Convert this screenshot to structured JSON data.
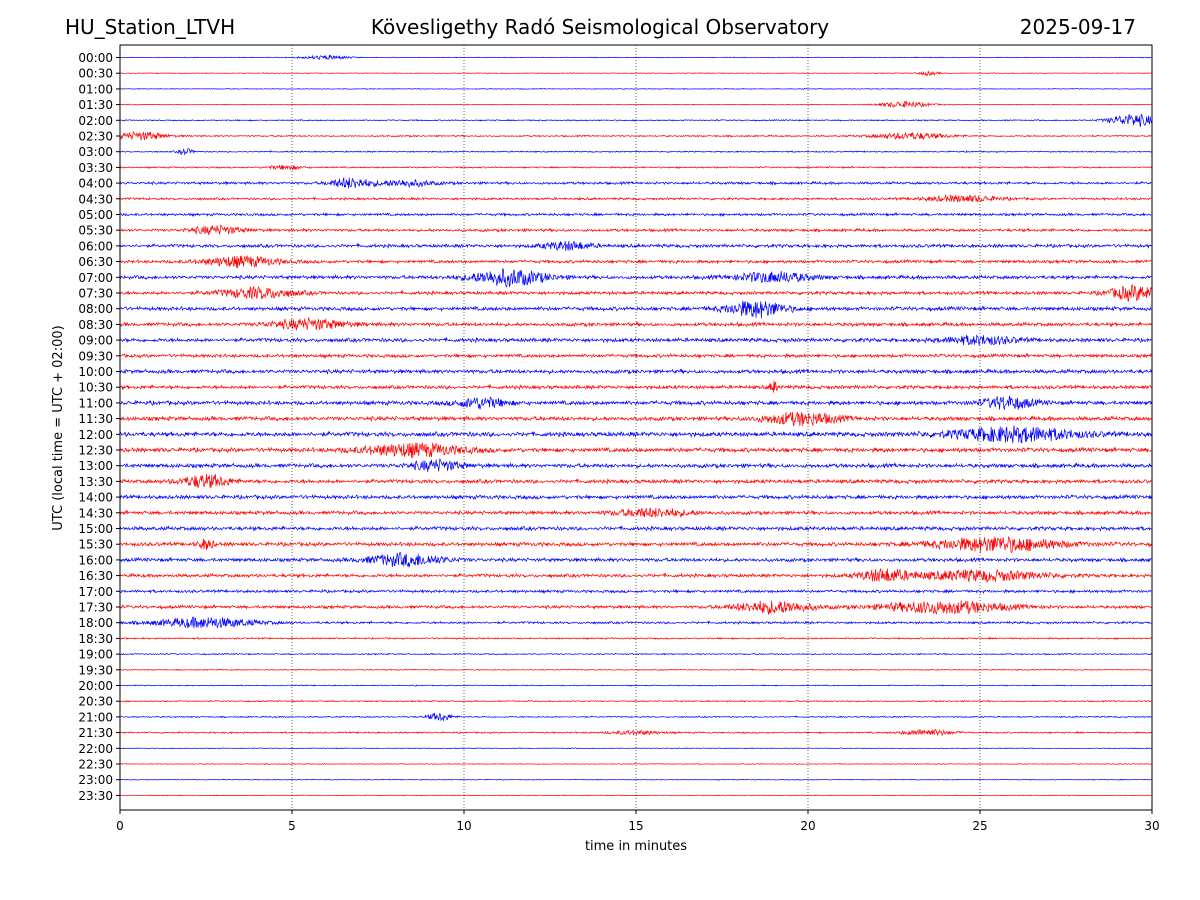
{
  "header": {
    "station": "HU_Station_LTVH",
    "observatory": "Kövesligethy Radó Seismological Observatory",
    "date": "2025-09-17"
  },
  "chart_data": {
    "type": "line",
    "xlabel": "time in minutes",
    "ylabel": "UTC (local time = UTC + 02:00)",
    "xlim": [
      0,
      30
    ],
    "x_ticks": [
      "0",
      "5",
      "10",
      "15",
      "20",
      "25",
      "30"
    ],
    "vertical_gridlines": [
      5,
      10,
      15,
      20,
      25
    ],
    "row_labels": [
      "00:00",
      "00:30",
      "01:00",
      "01:30",
      "02:00",
      "02:30",
      "03:00",
      "03:30",
      "04:00",
      "04:30",
      "05:00",
      "05:30",
      "06:00",
      "06:30",
      "07:00",
      "07:30",
      "08:00",
      "08:30",
      "09:00",
      "09:30",
      "10:00",
      "10:30",
      "11:00",
      "11:30",
      "12:00",
      "12:30",
      "13:00",
      "13:30",
      "14:00",
      "14:30",
      "15:00",
      "15:30",
      "16:00",
      "16:30",
      "17:00",
      "17:30",
      "18:00",
      "18:30",
      "19:00",
      "19:30",
      "20:00",
      "20:30",
      "21:00",
      "21:30",
      "22:00",
      "22:30",
      "23:00",
      "23:30"
    ],
    "row_colors": [
      "#0000ff",
      "#ff0000"
    ],
    "noise_level": [
      0.3,
      0.3,
      0.3,
      0.3,
      0.5,
      0.6,
      0.5,
      0.6,
      1.0,
      0.9,
      1.0,
      1.1,
      1.3,
      1.2,
      1.4,
      1.3,
      1.5,
      1.4,
      1.5,
      1.3,
      1.5,
      1.4,
      1.6,
      1.6,
      1.8,
      1.7,
      1.6,
      1.5,
      1.5,
      1.4,
      1.5,
      1.5,
      1.4,
      1.3,
      1.1,
      1.2,
      0.9,
      0.6,
      0.5,
      0.4,
      0.4,
      0.5,
      0.5,
      0.6,
      0.3,
      0.3,
      0.3,
      0.3
    ],
    "events": [
      {
        "row": 0,
        "x": 6.0,
        "amp": 2,
        "dur": 0.9
      },
      {
        "row": 1,
        "x": 23.5,
        "amp": 2,
        "dur": 0.4
      },
      {
        "row": 3,
        "x": 22.8,
        "amp": 3,
        "dur": 1.0
      },
      {
        "row": 4,
        "x": 29.5,
        "amp": 6,
        "dur": 1.0
      },
      {
        "row": 5,
        "x": 0.6,
        "amp": 4,
        "dur": 1.0
      },
      {
        "row": 5,
        "x": 23.0,
        "amp": 3,
        "dur": 1.5
      },
      {
        "row": 6,
        "x": 1.9,
        "amp": 3,
        "dur": 0.3
      },
      {
        "row": 7,
        "x": 4.8,
        "amp": 2,
        "dur": 0.7
      },
      {
        "row": 8,
        "x": 6.7,
        "amp": 5,
        "dur": 0.8
      },
      {
        "row": 8,
        "x": 8.3,
        "amp": 3,
        "dur": 1.2
      },
      {
        "row": 9,
        "x": 24.5,
        "amp": 3,
        "dur": 1.5
      },
      {
        "row": 11,
        "x": 2.8,
        "amp": 4,
        "dur": 1.0
      },
      {
        "row": 12,
        "x": 13.0,
        "amp": 4,
        "dur": 1.0
      },
      {
        "row": 13,
        "x": 3.5,
        "amp": 5,
        "dur": 1.5
      },
      {
        "row": 14,
        "x": 11.3,
        "amp": 8,
        "dur": 1.5
      },
      {
        "row": 14,
        "x": 19.0,
        "amp": 5,
        "dur": 1.5
      },
      {
        "row": 15,
        "x": 4.0,
        "amp": 5,
        "dur": 1.5
      },
      {
        "row": 15,
        "x": 29.5,
        "amp": 7,
        "dur": 1.0
      },
      {
        "row": 16,
        "x": 18.5,
        "amp": 8,
        "dur": 1.2
      },
      {
        "row": 17,
        "x": 5.5,
        "amp": 5,
        "dur": 1.5
      },
      {
        "row": 18,
        "x": 25.0,
        "amp": 4,
        "dur": 1.5
      },
      {
        "row": 21,
        "x": 19.0,
        "amp": 6,
        "dur": 0.15
      },
      {
        "row": 22,
        "x": 10.5,
        "amp": 5,
        "dur": 1.0
      },
      {
        "row": 22,
        "x": 25.8,
        "amp": 6,
        "dur": 1.0
      },
      {
        "row": 23,
        "x": 19.8,
        "amp": 6,
        "dur": 1.5
      },
      {
        "row": 24,
        "x": 26.0,
        "amp": 7,
        "dur": 2.5
      },
      {
        "row": 25,
        "x": 8.5,
        "amp": 6,
        "dur": 2.0
      },
      {
        "row": 26,
        "x": 9.2,
        "amp": 5,
        "dur": 1.0
      },
      {
        "row": 27,
        "x": 2.5,
        "amp": 6,
        "dur": 1.0
      },
      {
        "row": 29,
        "x": 15.5,
        "amp": 4,
        "dur": 1.5
      },
      {
        "row": 31,
        "x": 2.5,
        "amp": 5,
        "dur": 0.3
      },
      {
        "row": 31,
        "x": 25.5,
        "amp": 7,
        "dur": 2.5
      },
      {
        "row": 32,
        "x": 8.3,
        "amp": 6,
        "dur": 1.5
      },
      {
        "row": 33,
        "x": 22.2,
        "amp": 6,
        "dur": 1.0
      },
      {
        "row": 33,
        "x": 25.0,
        "amp": 5,
        "dur": 2.5
      },
      {
        "row": 35,
        "x": 19.0,
        "amp": 6,
        "dur": 1.5
      },
      {
        "row": 35,
        "x": 24.0,
        "amp": 6,
        "dur": 2.5
      },
      {
        "row": 36,
        "x": 2.5,
        "amp": 5,
        "dur": 2.0
      },
      {
        "row": 42,
        "x": 9.3,
        "amp": 4,
        "dur": 0.5
      },
      {
        "row": 43,
        "x": 23.5,
        "amp": 3,
        "dur": 1.0
      },
      {
        "row": 43,
        "x": 15.0,
        "amp": 2,
        "dur": 1.0
      }
    ]
  }
}
